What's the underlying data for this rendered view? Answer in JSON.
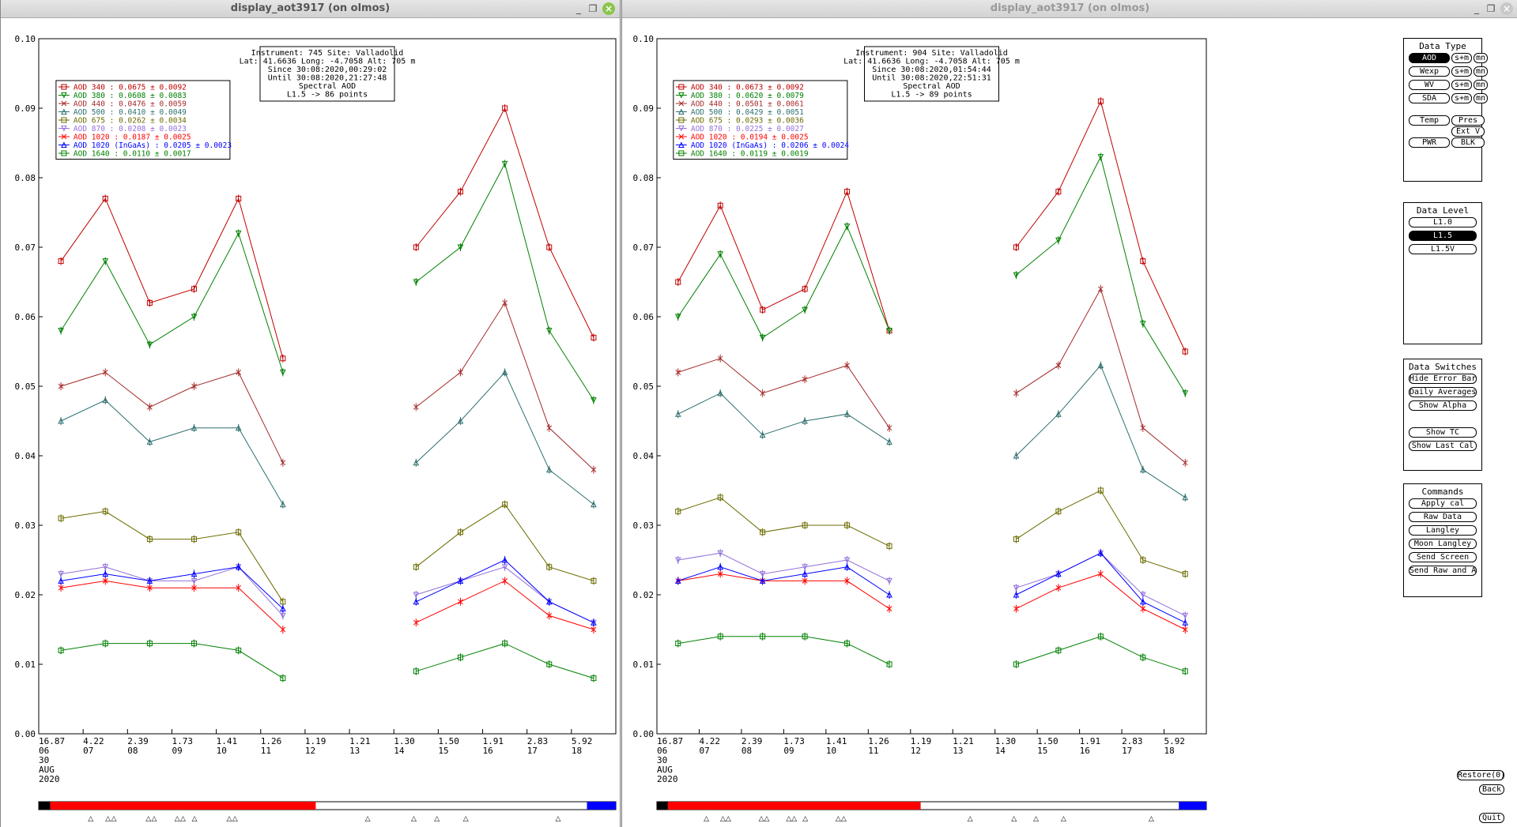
{
  "windows": [
    {
      "title": "display_aot3917 (on olmos)",
      "active": true,
      "info": {
        "lines": [
          "Instrument: 745 Site: Valladolid",
          "Lat: 41.6636 Long: -4.7058 Alt: 705 m",
          "Since 30:08:2020,00:29:02",
          "Until 30:08:2020,21:27:48",
          "Spectral AOD",
          "L1.5 -> 86 points"
        ]
      },
      "legend": [
        {
          "label": "AOD 340   : 0.0675 ± 0.0092",
          "color": "#c00000"
        },
        {
          "label": "AOD 380   : 0.0608 ± 0.0083",
          "color": "#008000"
        },
        {
          "label": "AOD 440   : 0.0476 ± 0.0059",
          "color": "#a52a2a"
        },
        {
          "label": "AOD 500   : 0.0410 ± 0.0049",
          "color": "#2f6f6f"
        },
        {
          "label": "AOD 675   : 0.0262 ± 0.0034",
          "color": "#6b6b00"
        },
        {
          "label": "AOD 870   : 0.0208 ± 0.0023",
          "color": "#9370db"
        },
        {
          "label": "AOD 1020   : 0.0187 ± 0.0025",
          "color": "#ff0000"
        },
        {
          "label": "AOD 1020 (InGaAs)   : 0.0205 ± 0.0023",
          "color": "#0000ff"
        },
        {
          "label": "AOD 1640   : 0.0110 ± 0.0017",
          "color": "#008000"
        }
      ],
      "x_labels": [
        {
          "top": "16.87",
          "bottom": "06"
        },
        {
          "top": "4.22",
          "bottom": "07"
        },
        {
          "top": "2.39",
          "bottom": "08"
        },
        {
          "top": "1.73",
          "bottom": "09"
        },
        {
          "top": "1.41",
          "bottom": "10"
        },
        {
          "top": "1.26",
          "bottom": "11"
        },
        {
          "top": "1.19",
          "bottom": "12"
        },
        {
          "top": "1.21",
          "bottom": "13"
        },
        {
          "top": "1.30",
          "bottom": "14"
        },
        {
          "top": "1.50",
          "bottom": "15"
        },
        {
          "top": "1.91",
          "bottom": "16"
        },
        {
          "top": "2.83",
          "bottom": "17"
        },
        {
          "top": "5.92",
          "bottom": "18"
        }
      ],
      "date_lines": [
        "30",
        "AUG",
        "2020"
      ]
    },
    {
      "title": "display_aot3917 (on olmos)",
      "active": false,
      "info": {
        "lines": [
          "Instrument: 904 Site: Valladolid",
          "Lat: 41.6636 Long: -4.7058 Alt: 705 m",
          "Since 30:08:2020,01:54:44",
          "Until 30:08:2020,22:51:31",
          "Spectral AOD",
          "L1.5 -> 89 points"
        ]
      },
      "legend": [
        {
          "label": "AOD 340   : 0.0673 ± 0.0092",
          "color": "#c00000"
        },
        {
          "label": "AOD 380   : 0.0620 ± 0.0079",
          "color": "#008000"
        },
        {
          "label": "AOD 440   : 0.0501 ± 0.0061",
          "color": "#a52a2a"
        },
        {
          "label": "AOD 500   : 0.0429 ± 0.0051",
          "color": "#2f6f6f"
        },
        {
          "label": "AOD 675   : 0.0293 ± 0.0036",
          "color": "#6b6b00"
        },
        {
          "label": "AOD 870   : 0.0225 ± 0.0027",
          "color": "#9370db"
        },
        {
          "label": "AOD 1020   : 0.0194 ± 0.0025",
          "color": "#ff0000"
        },
        {
          "label": "AOD 1020 (InGaAs)   : 0.0206 ± 0.0024",
          "color": "#0000ff"
        },
        {
          "label": "AOD 1640   : 0.0119 ± 0.0019",
          "color": "#008000"
        }
      ],
      "x_labels": [
        {
          "top": "16.87",
          "bottom": "06"
        },
        {
          "top": "4.22",
          "bottom": "07"
        },
        {
          "top": "2.39",
          "bottom": "08"
        },
        {
          "top": "1.73",
          "bottom": "09"
        },
        {
          "top": "1.41",
          "bottom": "10"
        },
        {
          "top": "1.26",
          "bottom": "11"
        },
        {
          "top": "1.19",
          "bottom": "12"
        },
        {
          "top": "1.21",
          "bottom": "13"
        },
        {
          "top": "1.30",
          "bottom": "14"
        },
        {
          "top": "1.50",
          "bottom": "15"
        },
        {
          "top": "1.91",
          "bottom": "16"
        },
        {
          "top": "2.83",
          "bottom": "17"
        },
        {
          "top": "5.92",
          "bottom": "18"
        }
      ],
      "date_lines": [
        "30",
        "AUG",
        "2020"
      ]
    }
  ],
  "y_ticks": [
    "0.10",
    "0.09",
    "0.08",
    "0.07",
    "0.06",
    "0.05",
    "0.04",
    "0.03",
    "0.02",
    "0.01",
    "0.00"
  ],
  "timeline": {
    "black_end": 0.02,
    "red_end": 0.48,
    "blue_start": 0.95
  },
  "panels": {
    "data_type": {
      "title": "Data Type",
      "rows": [
        [
          "AOD",
          "s+m",
          "mn"
        ],
        [
          "Wexp",
          "s+m",
          "mn"
        ],
        [
          "WV",
          "s+m",
          "mn"
        ],
        [
          "SDA",
          "s+m",
          "mn"
        ]
      ],
      "extra": [
        "Temp",
        "Pres",
        "Ext V",
        "PWR",
        "BLK"
      ]
    },
    "data_level": {
      "title": "Data Level",
      "items": [
        "L1.0",
        "L1.5",
        "L1.5V"
      ],
      "selected": "L1.5"
    },
    "data_switches": {
      "title": "Data Switches",
      "items": [
        "Hide Error Bars",
        "Daily Averages",
        "Show Alpha",
        "Show TC",
        "Show Last Cal"
      ]
    },
    "commands": {
      "title": "Commands",
      "items": [
        "Apply cal",
        "Raw Data",
        "Langley",
        "Moon Langley",
        "Send Screen",
        "Send Raw and AOD"
      ]
    }
  },
  "bottom_buttons": {
    "restore": "Restore(0)",
    "back": "Back",
    "quit": "Quit"
  },
  "chart_data": [
    {
      "type": "scatter",
      "title": "Spectral AOD",
      "ylim": [
        0,
        0.1
      ],
      "x": [
        "06",
        "07",
        "08",
        "09",
        "10",
        "11",
        "12",
        "13",
        "14",
        "15",
        "16",
        "17",
        "18"
      ],
      "series": [
        {
          "name": "AOD 340",
          "values": [
            0.068,
            0.077,
            0.062,
            0.064,
            0.077,
            0.054,
            null,
            null,
            0.07,
            0.078,
            0.09,
            0.07,
            0.057
          ]
        },
        {
          "name": "AOD 380",
          "values": [
            0.058,
            0.068,
            0.056,
            0.06,
            0.072,
            0.052,
            null,
            null,
            0.065,
            0.07,
            0.082,
            0.058,
            0.048
          ]
        },
        {
          "name": "AOD 440",
          "values": [
            0.05,
            0.052,
            0.047,
            0.05,
            0.052,
            0.039,
            null,
            null,
            0.047,
            0.052,
            0.062,
            0.044,
            0.038
          ]
        },
        {
          "name": "AOD 500",
          "values": [
            0.045,
            0.048,
            0.042,
            0.044,
            0.044,
            0.033,
            null,
            null,
            0.039,
            0.045,
            0.052,
            0.038,
            0.033
          ]
        },
        {
          "name": "AOD 675",
          "values": [
            0.031,
            0.032,
            0.028,
            0.028,
            0.029,
            0.019,
            null,
            null,
            0.024,
            0.029,
            0.033,
            0.024,
            0.022
          ]
        },
        {
          "name": "AOD 870",
          "values": [
            0.023,
            0.024,
            0.022,
            0.022,
            0.024,
            0.017,
            null,
            null,
            0.02,
            0.022,
            0.024,
            0.019,
            0.016
          ]
        },
        {
          "name": "AOD 1020",
          "values": [
            0.021,
            0.022,
            0.021,
            0.021,
            0.021,
            0.015,
            null,
            null,
            0.016,
            0.019,
            0.022,
            0.017,
            0.015
          ]
        },
        {
          "name": "AOD 1020 (InGaAs)",
          "values": [
            0.022,
            0.023,
            0.022,
            0.023,
            0.024,
            0.018,
            null,
            null,
            0.019,
            0.022,
            0.025,
            0.019,
            0.016
          ]
        },
        {
          "name": "AOD 1640",
          "values": [
            0.012,
            0.013,
            0.013,
            0.013,
            0.012,
            0.008,
            null,
            null,
            0.009,
            0.011,
            0.013,
            0.01,
            0.008
          ]
        }
      ]
    },
    {
      "type": "scatter",
      "title": "Spectral AOD",
      "ylim": [
        0,
        0.1
      ],
      "x": [
        "06",
        "07",
        "08",
        "09",
        "10",
        "11",
        "12",
        "13",
        "14",
        "15",
        "16",
        "17",
        "18"
      ],
      "series": [
        {
          "name": "AOD 340",
          "values": [
            0.065,
            0.076,
            0.061,
            0.064,
            0.078,
            0.058,
            null,
            null,
            0.07,
            0.078,
            0.091,
            0.068,
            0.055
          ]
        },
        {
          "name": "AOD 380",
          "values": [
            0.06,
            0.069,
            0.057,
            0.061,
            0.073,
            0.058,
            null,
            null,
            0.066,
            0.071,
            0.083,
            0.059,
            0.049
          ]
        },
        {
          "name": "AOD 440",
          "values": [
            0.052,
            0.054,
            0.049,
            0.051,
            0.053,
            0.044,
            null,
            null,
            0.049,
            0.053,
            0.064,
            0.044,
            0.039
          ]
        },
        {
          "name": "AOD 500",
          "values": [
            0.046,
            0.049,
            0.043,
            0.045,
            0.046,
            0.042,
            null,
            null,
            0.04,
            0.046,
            0.053,
            0.038,
            0.034
          ]
        },
        {
          "name": "AOD 675",
          "values": [
            0.032,
            0.034,
            0.029,
            0.03,
            0.03,
            0.027,
            null,
            null,
            0.028,
            0.032,
            0.035,
            0.025,
            0.023
          ]
        },
        {
          "name": "AOD 870",
          "values": [
            0.025,
            0.026,
            0.023,
            0.024,
            0.025,
            0.022,
            null,
            null,
            0.021,
            0.023,
            0.026,
            0.02,
            0.017
          ]
        },
        {
          "name": "AOD 1020",
          "values": [
            0.022,
            0.023,
            0.022,
            0.022,
            0.022,
            0.018,
            null,
            null,
            0.018,
            0.021,
            0.023,
            0.018,
            0.015
          ]
        },
        {
          "name": "AOD 1020 (InGaAs)",
          "values": [
            0.022,
            0.024,
            0.022,
            0.023,
            0.024,
            0.02,
            null,
            null,
            0.02,
            0.023,
            0.026,
            0.019,
            0.016
          ]
        },
        {
          "name": "AOD 1640",
          "values": [
            0.013,
            0.014,
            0.014,
            0.014,
            0.013,
            0.01,
            null,
            null,
            0.01,
            0.012,
            0.014,
            0.011,
            0.009
          ]
        }
      ]
    }
  ]
}
